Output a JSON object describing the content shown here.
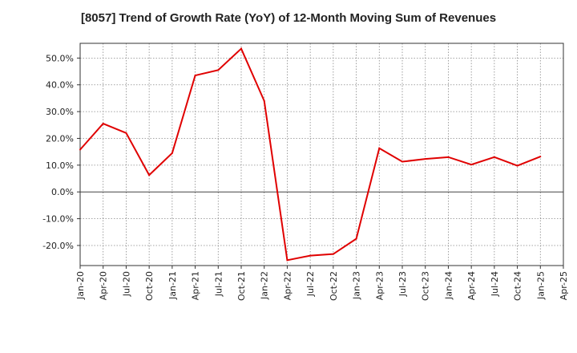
{
  "chart_data": {
    "type": "line",
    "title": "[8057]  Trend of Growth Rate (YoY) of 12-Month Moving Sum of Revenues",
    "xlabel": "",
    "ylabel": "",
    "x_ticks": [
      "Jan-20",
      "Apr-20",
      "Jul-20",
      "Oct-20",
      "Jan-21",
      "Apr-21",
      "Jul-21",
      "Oct-21",
      "Jan-22",
      "Apr-22",
      "Jul-22",
      "Oct-22",
      "Jan-23",
      "Apr-23",
      "Jul-23",
      "Oct-23",
      "Jan-24",
      "Apr-24",
      "Jul-24",
      "Oct-24",
      "Jan-25",
      "Apr-25"
    ],
    "y_ticks": [
      50,
      40,
      30,
      20,
      10,
      0,
      -10,
      -20
    ],
    "y_tick_labels": [
      "50.0%",
      "40.0%",
      "30.0%",
      "20.0%",
      "10.0%",
      "0.0%",
      "-10.0%",
      "-20.0%"
    ],
    "ylim": [
      -27.5,
      55.5
    ],
    "grid": true,
    "series": [
      {
        "color": "#e00000",
        "x": [
          "Jan-20",
          "Apr-20",
          "Jul-20",
          "Oct-20",
          "Jan-21",
          "Apr-21",
          "Jul-21",
          "Oct-21",
          "Jan-22",
          "Apr-22",
          "Jul-22",
          "Oct-22",
          "Jan-23",
          "Apr-23",
          "Jul-23",
          "Oct-23",
          "Jan-24",
          "Apr-24",
          "Jul-24",
          "Oct-24",
          "Jan-25"
        ],
        "values": [
          15.8,
          25.5,
          22.0,
          6.3,
          14.5,
          43.5,
          45.5,
          53.5,
          34.0,
          -25.5,
          -23.8,
          -23.2,
          -17.5,
          16.3,
          11.3,
          12.3,
          13.0,
          10.2,
          13.0,
          9.8,
          13.2
        ]
      }
    ]
  }
}
